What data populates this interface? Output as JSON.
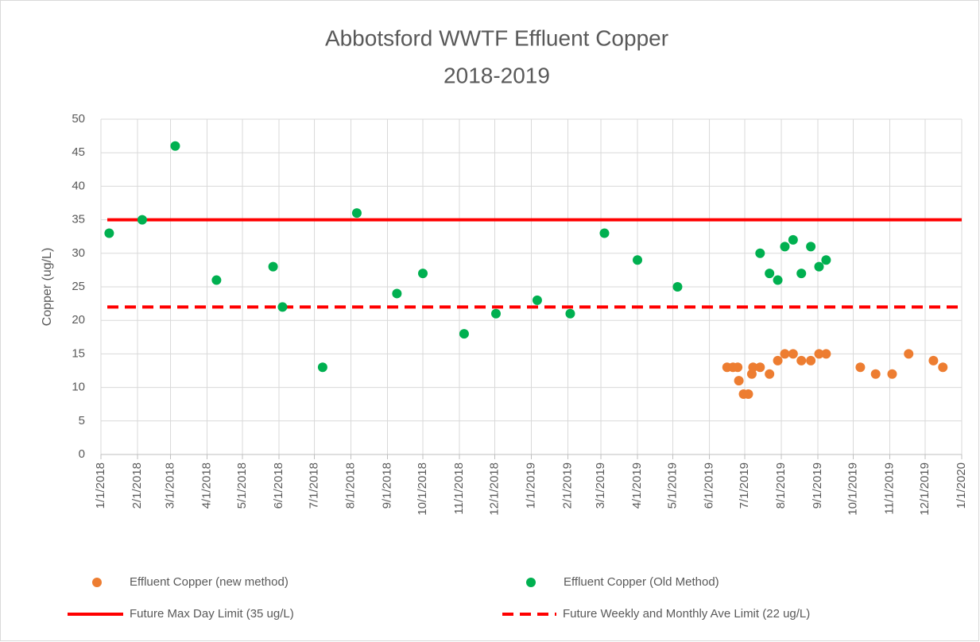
{
  "chart_data": {
    "type": "scatter",
    "title": [
      "Abbotsford WWTF Effluent Copper",
      "2018-2019"
    ],
    "y_label": "Copper (ug/L)",
    "xlim": [
      "1/1/2018",
      "1/1/2020"
    ],
    "xticks": [
      "1/1/2018",
      "2/1/2018",
      "3/1/2018",
      "4/1/2018",
      "5/1/2018",
      "6/1/2018",
      "7/1/2018",
      "8/1/2018",
      "9/1/2018",
      "10/1/2018",
      "11/1/2018",
      "12/1/2018",
      "1/1/2019",
      "2/1/2019",
      "3/1/2019",
      "4/1/2019",
      "5/1/2019",
      "6/1/2019",
      "7/1/2019",
      "8/1/2019",
      "9/1/2019",
      "10/1/2019",
      "11/1/2019",
      "12/1/2019",
      "1/1/2020"
    ],
    "ylim": [
      0,
      50
    ],
    "yticks": [
      0,
      5,
      10,
      15,
      20,
      25,
      30,
      35,
      40,
      45,
      50
    ],
    "grid": true,
    "series": [
      {
        "name": "Effluent Copper (new method)",
        "color": "#ed7d31",
        "x": [
          "6/16/2019",
          "6/21/2019",
          "6/25/2019",
          "6/26/2019",
          "6/30/2019",
          "7/4/2019",
          "7/7/2019",
          "7/8/2019",
          "7/14/2019",
          "7/22/2019",
          "7/29/2019",
          "8/4/2019",
          "8/11/2019",
          "8/18/2019",
          "8/26/2019",
          "9/2/2019",
          "9/8/2019",
          "10/7/2019",
          "10/20/2019",
          "11/3/2019",
          "11/17/2019",
          "12/8/2019",
          "12/16/2019"
        ],
        "values": [
          13,
          13,
          13,
          11,
          9,
          9,
          12,
          13,
          13,
          12,
          14,
          15,
          15,
          14,
          14,
          15,
          15,
          13,
          12,
          12,
          15,
          14,
          13
        ]
      },
      {
        "name": "Effluent Copper (Old Method)",
        "color": "#00b050",
        "x": [
          "1/8/2018",
          "2/5/2018",
          "3/5/2018",
          "4/9/2018",
          "5/27/2018",
          "6/4/2018",
          "7/8/2018",
          "8/6/2018",
          "9/9/2018",
          "10/1/2018",
          "11/5/2018",
          "12/2/2018",
          "1/6/2019",
          "2/3/2019",
          "3/4/2019",
          "4/1/2019",
          "5/5/2019",
          "7/14/2019",
          "7/22/2019",
          "7/29/2019",
          "8/4/2019",
          "8/11/2019",
          "8/18/2019",
          "8/26/2019",
          "9/2/2019",
          "9/8/2019"
        ],
        "values": [
          33,
          35,
          46,
          26,
          28,
          22,
          13,
          36,
          24,
          27,
          18,
          21,
          23,
          21,
          33,
          29,
          25,
          30,
          27,
          26,
          31,
          32,
          27,
          31,
          28,
          29
        ]
      }
    ],
    "lines": [
      {
        "name": "Future Max Day Limit (35 ug/L)",
        "color": "#ff0000",
        "value": 35,
        "dashed": false
      },
      {
        "name": "Future Weekly and Monthly Ave Limit (22 ug/L)",
        "color": "#ff0000",
        "value": 22,
        "dashed": true
      }
    ]
  }
}
